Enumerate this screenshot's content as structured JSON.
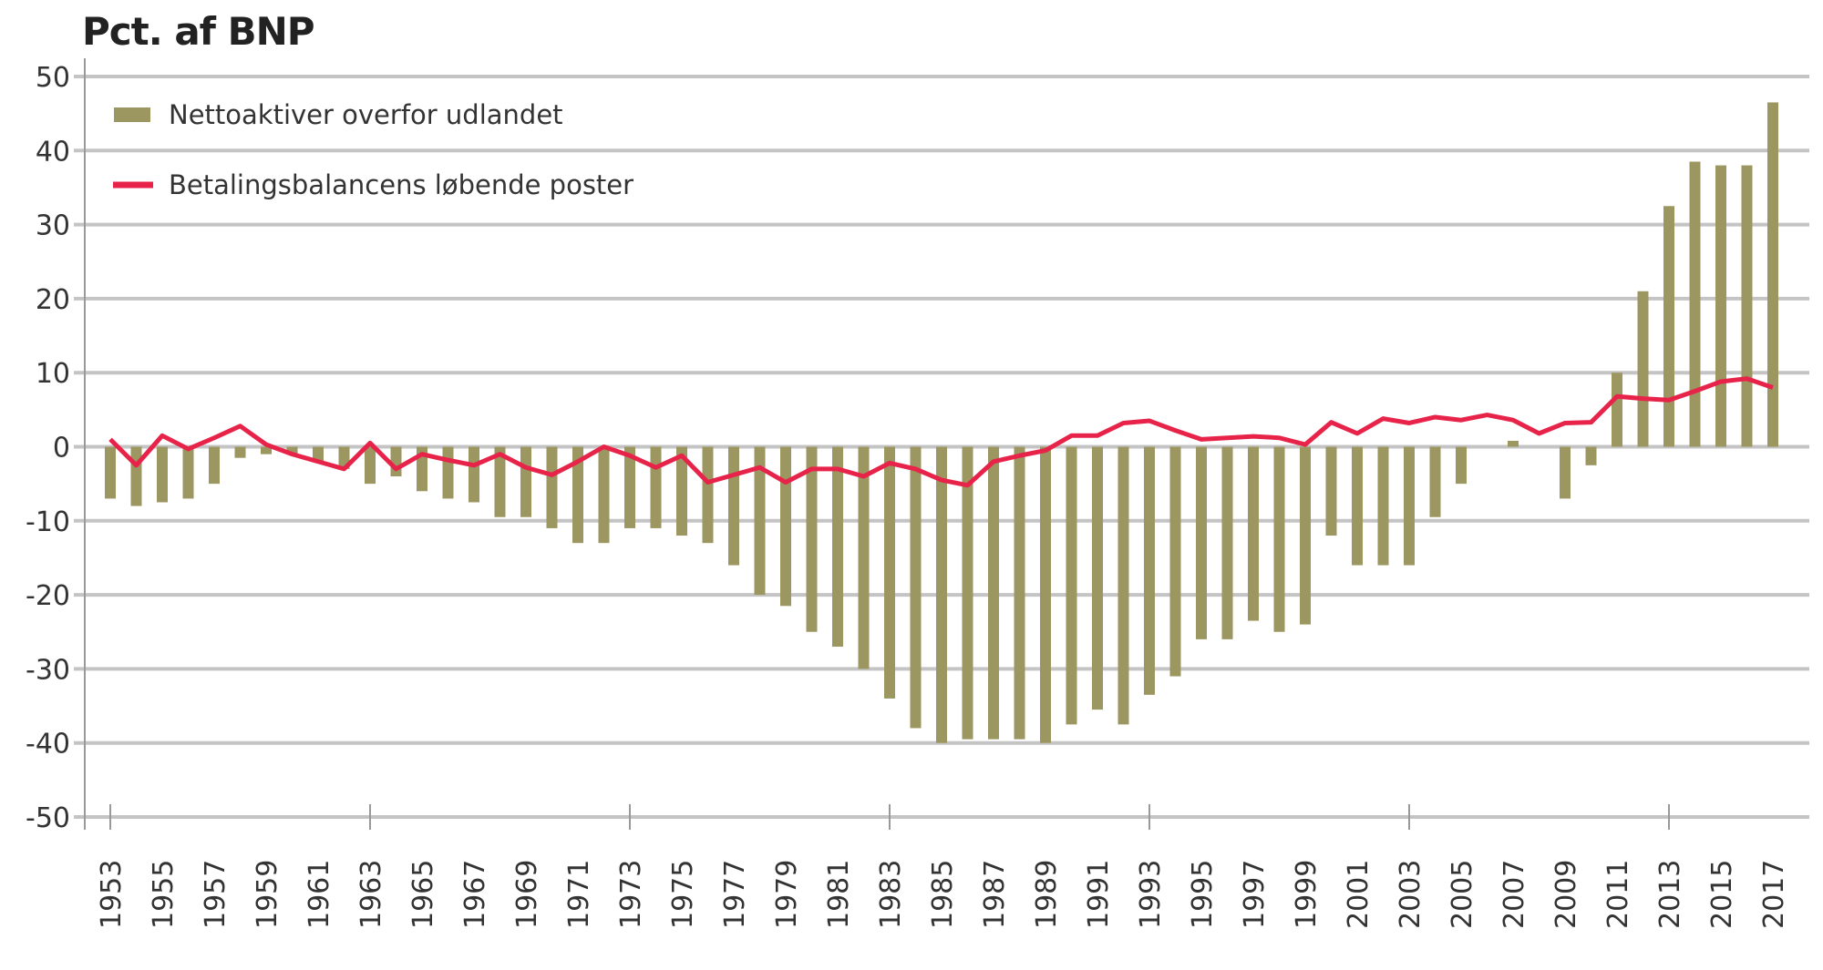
{
  "chart_data": {
    "type": "bar+line",
    "title": "Pct. af BNP",
    "xlabel": "",
    "ylabel": "Pct. af BNP",
    "ylim": [
      -50,
      50
    ],
    "yticks": [
      50,
      40,
      30,
      20,
      10,
      0,
      -10,
      -20,
      -30,
      -40,
      -50
    ],
    "grid": true,
    "legend_position": "top-left",
    "colors": {
      "bars": "#9c9660",
      "line": "#e8234a",
      "grid": "#c4c4c4"
    },
    "x": [
      1953,
      1954,
      1955,
      1956,
      1957,
      1958,
      1959,
      1960,
      1961,
      1962,
      1963,
      1964,
      1965,
      1966,
      1967,
      1968,
      1969,
      1970,
      1971,
      1972,
      1973,
      1974,
      1975,
      1976,
      1977,
      1978,
      1979,
      1980,
      1981,
      1982,
      1983,
      1984,
      1985,
      1986,
      1987,
      1988,
      1989,
      1990,
      1991,
      1992,
      1993,
      1994,
      1995,
      1996,
      1997,
      1998,
      1999,
      2000,
      2001,
      2002,
      2003,
      2004,
      2005,
      2006,
      2007,
      2008,
      2009,
      2010,
      2011,
      2012,
      2013,
      2014,
      2015,
      2016,
      2017
    ],
    "xtick_labels": [
      "1953",
      "1955",
      "1957",
      "1959",
      "1961",
      "1963",
      "1965",
      "1967",
      "1969",
      "1971",
      "1973",
      "1975",
      "1977",
      "1979",
      "1981",
      "1983",
      "1985",
      "1987",
      "1989",
      "1991",
      "1993",
      "1995",
      "1997",
      "1999",
      "2001",
      "2003",
      "2005",
      "2007",
      "2009",
      "2011",
      "2013",
      "2015",
      "2017"
    ],
    "series": [
      {
        "name": "Nettoaktiver overfor udlandet",
        "kind": "bar",
        "values": [
          -7,
          -8,
          -7.5,
          -7,
          -5,
          -1.5,
          -1,
          -1,
          -2,
          -3,
          -5,
          -4,
          -6,
          -7,
          -7.5,
          -9.5,
          -9.5,
          -11,
          -13,
          -13,
          -11,
          -11,
          -12,
          -13,
          -16,
          -20,
          -21.5,
          -25,
          -27,
          -30,
          -34,
          -38,
          -40,
          -39.5,
          -39.5,
          -39.5,
          -40,
          -37.5,
          -35.5,
          -37.5,
          -33.5,
          -31,
          -26,
          -26,
          -23.5,
          -25,
          -24,
          -12,
          -16,
          -16,
          -16,
          -9.5,
          -5,
          0,
          0.8,
          0,
          -7,
          -2.5,
          10,
          21,
          32.5,
          38.5,
          38,
          38,
          46.5
        ]
      },
      {
        "name": "Betalingsbalancens løbende poster",
        "kind": "line",
        "values": [
          1,
          -2.5,
          1.5,
          -0.3,
          1.2,
          2.8,
          0.3,
          -1,
          -2,
          -3,
          0.5,
          -3,
          -1,
          -1.8,
          -2.5,
          -1,
          -2.8,
          -3.8,
          -2,
          0,
          -1.2,
          -2.8,
          -1.2,
          -4.8,
          -3.8,
          -2.8,
          -4.8,
          -3,
          -3,
          -4,
          -2.2,
          -3,
          -4.5,
          -5.2,
          -2,
          -1.2,
          -0.5,
          1.5,
          1.5,
          3.2,
          3.5,
          2.2,
          1,
          1.2,
          1.4,
          1.2,
          0.3,
          3.3,
          1.8,
          3.8,
          3.2,
          4,
          3.6,
          4.3,
          3.6,
          1.8,
          3.2,
          3.3,
          6.8,
          6.5,
          6.3,
          7.5,
          8.8,
          9.2,
          8
        ]
      }
    ]
  }
}
